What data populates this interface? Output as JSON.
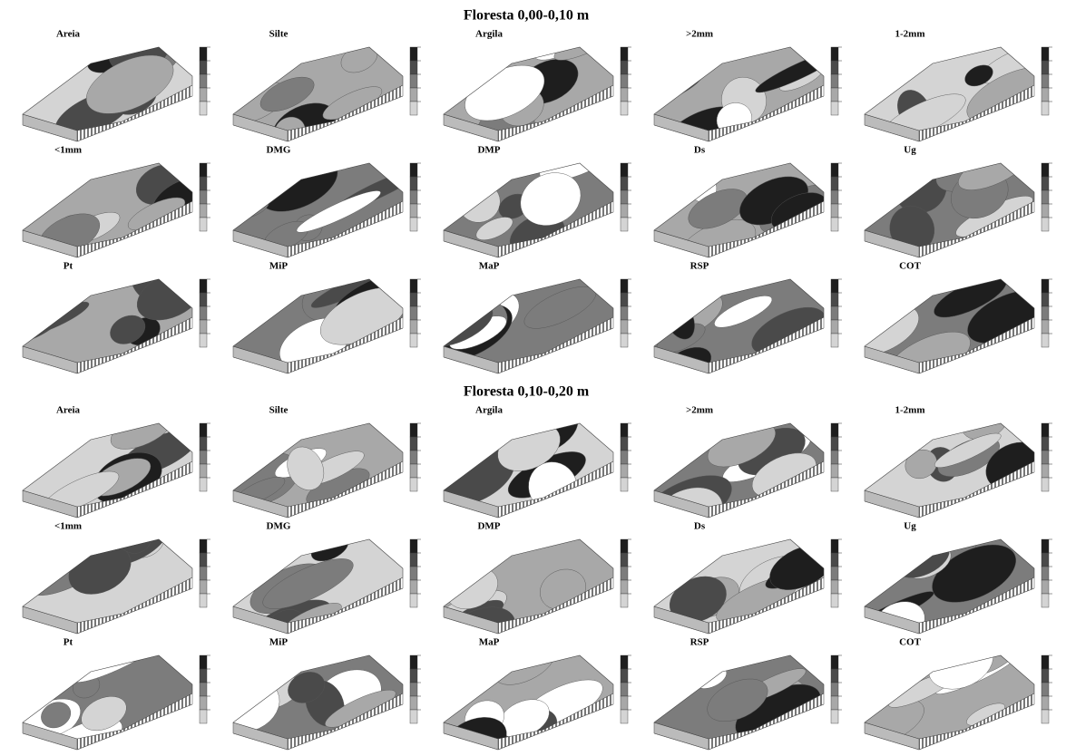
{
  "sections": [
    {
      "title": "Floresta 0,00-0,10 m",
      "panels": [
        "Areia",
        "Silte",
        "Argila",
        ">2mm",
        "1-2mm",
        "<1mm",
        "DMG",
        "DMP",
        "Ds",
        "Ug",
        "Pt",
        "MiP",
        "MaP",
        "RSP",
        "COT"
      ]
    },
    {
      "title": "Floresta 0,10-0,20 m",
      "panels": [
        "Areia",
        "Silte",
        "Argila",
        ">2mm",
        "1-2mm",
        "<1mm",
        "DMG",
        "DMP",
        "Ds",
        "Ug",
        "Pt",
        "MiP",
        "MaP",
        "RSP",
        "COT"
      ]
    }
  ]
}
